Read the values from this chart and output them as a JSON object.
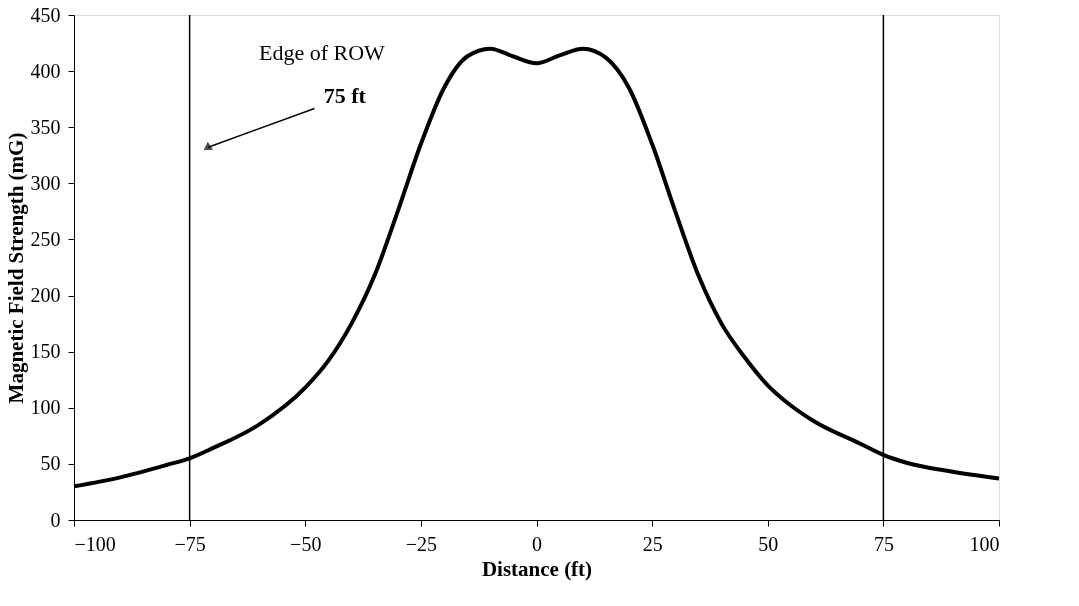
{
  "chart_data": {
    "type": "line",
    "xlabel": "Distance (ft)",
    "ylabel": "Magnetic Field Strength (mG)",
    "x": [
      -100,
      -90,
      -80,
      -75,
      -70,
      -60,
      -50,
      -45,
      -40,
      -35,
      -30,
      -25,
      -20,
      -15,
      -10,
      -5,
      0,
      5,
      10,
      15,
      20,
      25,
      30,
      35,
      40,
      45,
      50,
      55,
      60,
      70,
      75,
      80,
      90,
      100
    ],
    "series": [
      {
        "color": "#000000",
        "values": [
          30,
          38,
          49,
          55,
          64,
          85,
          118,
          142,
          175,
          218,
          275,
          335,
          385,
          413,
          420,
          413,
          407,
          414,
          420,
          412,
          385,
          335,
          275,
          218,
          175,
          145,
          120,
          102,
          88,
          68,
          58,
          51,
          43,
          37
        ]
      }
    ],
    "xlim": [
      -100,
      100
    ],
    "xticks": [
      -100,
      -75,
      -50,
      -25,
      0,
      25,
      50,
      75,
      100
    ],
    "ylim": [
      0,
      450
    ],
    "yticks": [
      0,
      50,
      100,
      150,
      200,
      250,
      300,
      350,
      400,
      450
    ],
    "ref_lines": [
      {
        "axis": "x",
        "value": -75,
        "color": "#000000"
      },
      {
        "axis": "x",
        "value": 75,
        "color": "#000000"
      }
    ],
    "annotations": [
      "Edge of ROW",
      "75 ft"
    ],
    "grid": false,
    "marker": "none",
    "line_style": "solid"
  }
}
